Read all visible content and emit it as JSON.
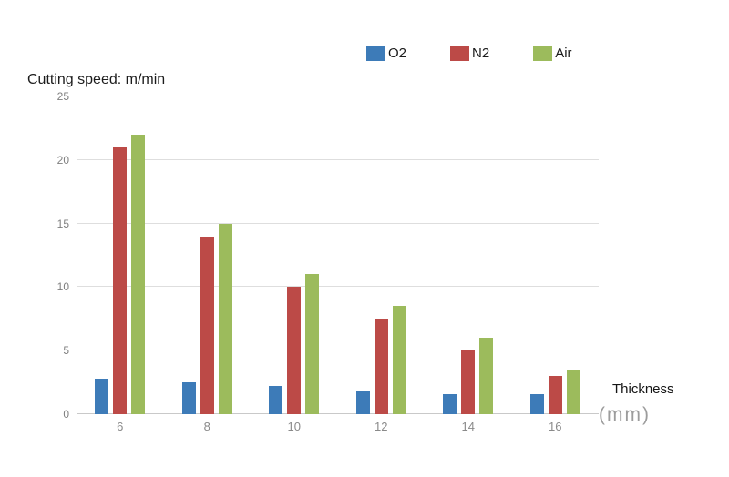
{
  "title": "Cutting speed: m/min",
  "x_axis": {
    "title": "Thickness",
    "unit": "(mm)"
  },
  "legend": {
    "items": [
      "O2",
      "N2",
      "Air"
    ]
  },
  "colors": {
    "o2": "#3d7bb8",
    "n2": "#bc4a47",
    "air": "#9cbb5c",
    "gridline": "#dedede",
    "baseline": "#c9c9c9"
  },
  "chart_data": {
    "type": "bar",
    "title": "Cutting speed: m/min",
    "xlabel": "Thickness (mm)",
    "ylabel": "Cutting speed (m/min)",
    "categories": [
      "6",
      "8",
      "10",
      "12",
      "14",
      "16"
    ],
    "series": [
      {
        "name": "O2",
        "color": "#3d7bb8",
        "values": [
          2.8,
          2.5,
          2.2,
          1.9,
          1.6,
          1.6
        ]
      },
      {
        "name": "N2",
        "color": "#bc4a47",
        "values": [
          21,
          14,
          10,
          7.5,
          5,
          3
        ]
      },
      {
        "name": "Air",
        "color": "#9cbb5c",
        "values": [
          22,
          15,
          11,
          8.5,
          6,
          3.5
        ]
      }
    ],
    "ylim": [
      0,
      25
    ],
    "yticks": [
      0,
      5,
      10,
      15,
      20,
      25
    ],
    "grid": true,
    "legend_position": "top"
  }
}
